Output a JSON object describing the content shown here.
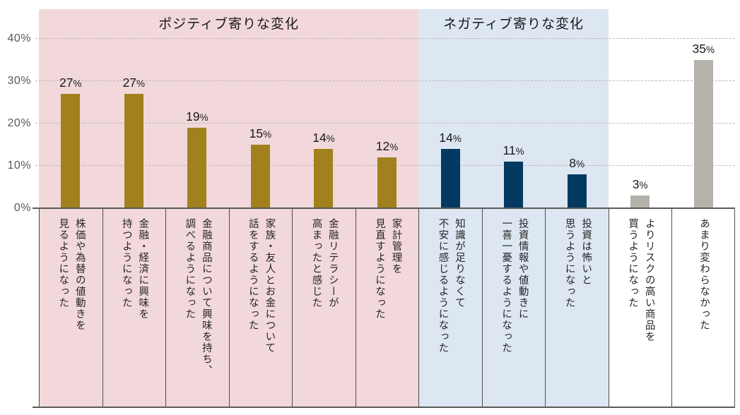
{
  "chart_data": {
    "type": "bar",
    "title": "",
    "unit": "%",
    "ylim": [
      0,
      47
    ],
    "yticks": [
      0,
      10,
      20,
      30,
      40
    ],
    "ytick_labels": [
      "0%",
      "10%",
      "20%",
      "30%",
      "40%"
    ],
    "grid": "horizontal-dashed",
    "legend": "none",
    "regions": [
      {
        "id": "positive",
        "label": "ポジティブ寄りな変化",
        "band_color": "#f2d8da",
        "bar_color": "#a1811e",
        "category_count": 6
      },
      {
        "id": "negative",
        "label": "ネガティブ寄りな変化",
        "band_color": "#dde7f2",
        "bar_color": "#043a61",
        "category_count": 3
      },
      {
        "id": "neutral",
        "label": "",
        "band_color": "#ffffff",
        "bar_color": "#b4b2aa",
        "category_count": 2
      }
    ],
    "categories": [
      {
        "lines": [
          "株価や為替の値動きを",
          "見るようになった"
        ],
        "value": 27,
        "region": "positive"
      },
      {
        "lines": [
          "金融・経済に興味を",
          "持つようになった"
        ],
        "value": 27,
        "region": "positive"
      },
      {
        "lines": [
          "金融商品について興味を持ち、",
          "調べるようになった"
        ],
        "value": 19,
        "region": "positive"
      },
      {
        "lines": [
          "家族・友人とお金について",
          "話をするようになった"
        ],
        "value": 15,
        "region": "positive"
      },
      {
        "lines": [
          "金融リテラシーが",
          "高まったと感じた"
        ],
        "value": 14,
        "region": "positive"
      },
      {
        "lines": [
          "家計管理を",
          "見直すようになった"
        ],
        "value": 12,
        "region": "positive"
      },
      {
        "lines": [
          "知識が足りなくて",
          "不安に感じるようになった"
        ],
        "value": 14,
        "region": "negative"
      },
      {
        "lines": [
          "投資情報や値動きに",
          "一喜一憂するようになった"
        ],
        "value": 11,
        "region": "negative"
      },
      {
        "lines": [
          "投資は怖いと",
          "思うようになった"
        ],
        "value": 8,
        "region": "negative"
      },
      {
        "lines": [
          "よりリスクの高い商品を",
          "買うようになった"
        ],
        "value": 3,
        "region": "neutral"
      },
      {
        "lines": [
          "あまり変わらなかった"
        ],
        "value": 35,
        "region": "neutral"
      }
    ],
    "colors": {
      "grid": "#bdb8b7",
      "axis_line": "#5a5a5a",
      "tick_text": "#595959",
      "value_text": "#1a1a1a",
      "category_text": "#262626",
      "cell_border": "#4d4d4d"
    }
  }
}
